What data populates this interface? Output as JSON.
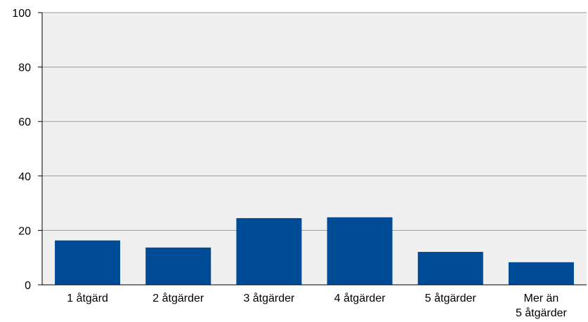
{
  "chart_data": {
    "type": "bar",
    "title": "",
    "xlabel": "",
    "ylabel": "",
    "categories": [
      [
        "1 åtgärd"
      ],
      [
        "2 åtgärder"
      ],
      [
        "3 åtgärder"
      ],
      [
        "4 åtgärder"
      ],
      [
        "5 åtgärder"
      ],
      [
        "Mer än",
        "5 åtgärder"
      ]
    ],
    "values": [
      16.3,
      13.7,
      24.5,
      24.8,
      12.1,
      8.3
    ],
    "ylim": [
      0,
      100
    ],
    "yticks": [
      0,
      20,
      40,
      60,
      80,
      100
    ],
    "grid": true,
    "legend": "none",
    "colors": {
      "bar": "#004b96",
      "plot_background": "#f0f0f0",
      "gridline": "#9a9a9a",
      "axis": "#000000"
    }
  }
}
